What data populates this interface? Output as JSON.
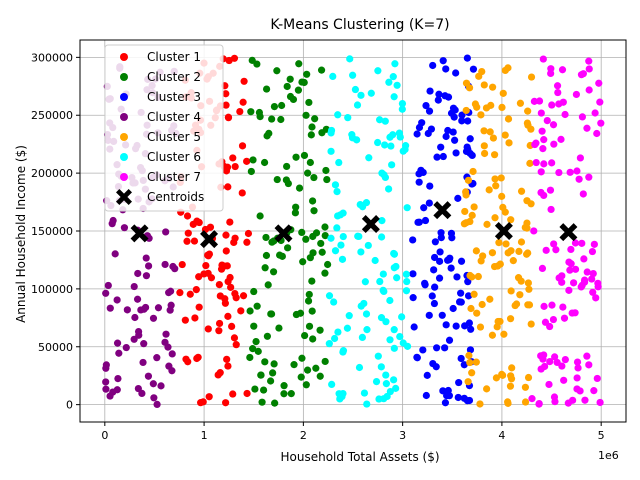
{
  "chart_data": {
    "type": "scatter",
    "title": "K-Means Clustering (K=7)",
    "xlabel": "Household Total Assets ($)",
    "ylabel": "Annual Household Income ($)",
    "x_offset_label": "1e6",
    "xlim": [
      -0.25,
      5.25
    ],
    "ylim": [
      -15000,
      315000
    ],
    "x_ticks": [
      0,
      1,
      2,
      3,
      4,
      5
    ],
    "y_ticks": [
      0,
      50000,
      100000,
      150000,
      200000,
      250000,
      300000
    ],
    "y_tick_labels": [
      "0",
      "50000",
      "100000",
      "150000",
      "200000",
      "250000",
      "300000"
    ],
    "grid": true,
    "legend_position": "top-left",
    "series": [
      {
        "name": "Cluster 1",
        "color": "#ff0000",
        "x_range": [
          0.75,
          1.45
        ]
      },
      {
        "name": "Cluster 2",
        "color": "#008000",
        "x_range": [
          1.45,
          2.25
        ]
      },
      {
        "name": "Cluster 3",
        "color": "#0000ff",
        "x_range": [
          3.1,
          3.72
        ]
      },
      {
        "name": "Cluster 4",
        "color": "#800080",
        "x_range": [
          0.0,
          0.72
        ]
      },
      {
        "name": "Cluster 5",
        "color": "#ffa500",
        "x_range": [
          3.62,
          4.32
        ]
      },
      {
        "name": "Cluster 6",
        "color": "#00ffff",
        "x_range": [
          2.25,
          3.05
        ]
      },
      {
        "name": "Cluster 7",
        "color": "#ff00ff",
        "x_range": [
          4.3,
          5.0
        ]
      }
    ],
    "centroids": {
      "name": "Centroids",
      "color": "#000000",
      "points": [
        {
          "x": 0.35,
          "y": 148000
        },
        {
          "x": 1.05,
          "y": 143000
        },
        {
          "x": 1.8,
          "y": 148000
        },
        {
          "x": 2.68,
          "y": 156000
        },
        {
          "x": 3.4,
          "y": 168000
        },
        {
          "x": 4.02,
          "y": 150000
        },
        {
          "x": 4.67,
          "y": 149000
        }
      ]
    },
    "points_per_cluster": 120
  }
}
